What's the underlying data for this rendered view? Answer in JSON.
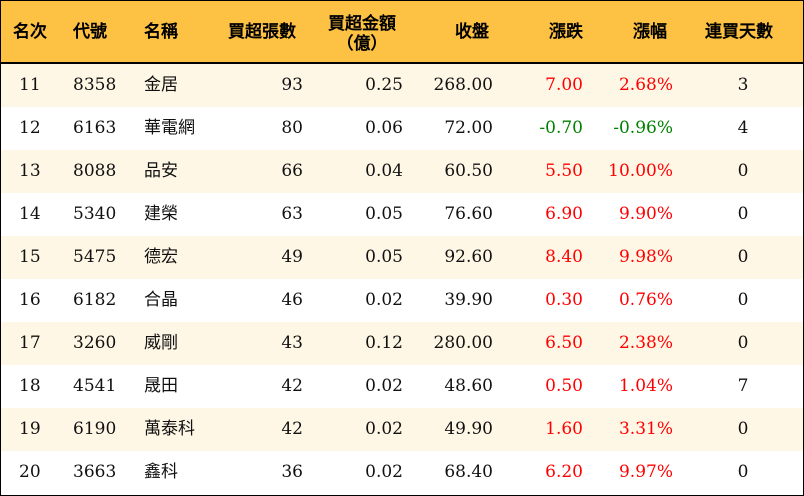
{
  "table": {
    "headers": {
      "rank": "名次",
      "code": "代號",
      "name": "名稱",
      "net_buy_sheets": "買超張數",
      "net_buy_amount_line1": "買超金額",
      "net_buy_amount_line2": "（億）",
      "close": "收盤",
      "change": "漲跌",
      "change_pct": "漲幅",
      "consecutive_days": "連買天數"
    },
    "colors": {
      "header_bg": "#FDC144",
      "odd_row_bg": "#FFF7E6",
      "even_row_bg": "#FFFFFF",
      "up": "#FF0000",
      "down": "#008000"
    },
    "rows": [
      {
        "rank": "11",
        "code": "8358",
        "name": "金居",
        "net_buy_sheets": "93",
        "net_buy_amount": "0.25",
        "close": "268.00",
        "change": "7.00",
        "change_pct": "2.68%",
        "consecutive_days": "3",
        "direction": "up"
      },
      {
        "rank": "12",
        "code": "6163",
        "name": "華電網",
        "net_buy_sheets": "80",
        "net_buy_amount": "0.06",
        "close": "72.00",
        "change": "-0.70",
        "change_pct": "-0.96%",
        "consecutive_days": "4",
        "direction": "down"
      },
      {
        "rank": "13",
        "code": "8088",
        "name": "品安",
        "net_buy_sheets": "66",
        "net_buy_amount": "0.04",
        "close": "60.50",
        "change": "5.50",
        "change_pct": "10.00%",
        "consecutive_days": "0",
        "direction": "up"
      },
      {
        "rank": "14",
        "code": "5340",
        "name": "建榮",
        "net_buy_sheets": "63",
        "net_buy_amount": "0.05",
        "close": "76.60",
        "change": "6.90",
        "change_pct": "9.90%",
        "consecutive_days": "0",
        "direction": "up"
      },
      {
        "rank": "15",
        "code": "5475",
        "name": "德宏",
        "net_buy_sheets": "49",
        "net_buy_amount": "0.05",
        "close": "92.60",
        "change": "8.40",
        "change_pct": "9.98%",
        "consecutive_days": "0",
        "direction": "up"
      },
      {
        "rank": "16",
        "code": "6182",
        "name": "合晶",
        "net_buy_sheets": "46",
        "net_buy_amount": "0.02",
        "close": "39.90",
        "change": "0.30",
        "change_pct": "0.76%",
        "consecutive_days": "0",
        "direction": "up"
      },
      {
        "rank": "17",
        "code": "3260",
        "name": "威剛",
        "net_buy_sheets": "43",
        "net_buy_amount": "0.12",
        "close": "280.00",
        "change": "6.50",
        "change_pct": "2.38%",
        "consecutive_days": "0",
        "direction": "up"
      },
      {
        "rank": "18",
        "code": "4541",
        "name": "晟田",
        "net_buy_sheets": "42",
        "net_buy_amount": "0.02",
        "close": "48.60",
        "change": "0.50",
        "change_pct": "1.04%",
        "consecutive_days": "7",
        "direction": "up"
      },
      {
        "rank": "19",
        "code": "6190",
        "name": "萬泰科",
        "net_buy_sheets": "42",
        "net_buy_amount": "0.02",
        "close": "49.90",
        "change": "1.60",
        "change_pct": "3.31%",
        "consecutive_days": "0",
        "direction": "up"
      },
      {
        "rank": "20",
        "code": "3663",
        "name": "鑫科",
        "net_buy_sheets": "36",
        "net_buy_amount": "0.02",
        "close": "68.40",
        "change": "6.20",
        "change_pct": "9.97%",
        "consecutive_days": "0",
        "direction": "up"
      }
    ]
  }
}
